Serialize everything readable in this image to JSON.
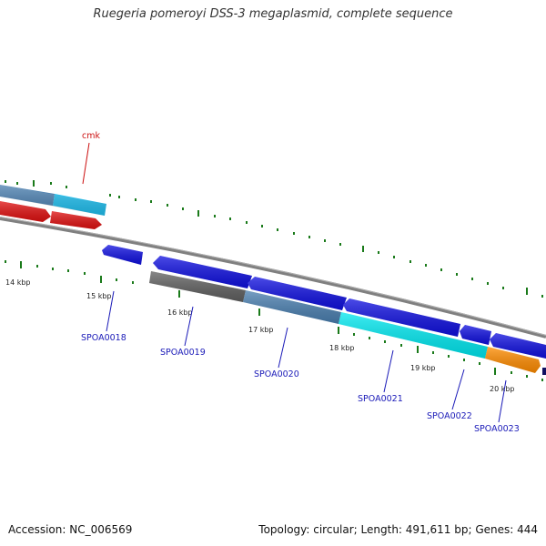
{
  "title": "Ruegeria pomeroyi DSS-3 megaplasmid, complete sequence",
  "footer": {
    "accession": "Accession: NC_006569",
    "summary": "Topology: circular; Length: 491,611 bp; Genes: 444"
  },
  "scale_labels": [
    "14 kbp",
    "15 kbp",
    "16 kbp",
    "17 kbp",
    "18 kbp",
    "19 kbp",
    "20 kbp"
  ],
  "gene_labels": {
    "cmk": "cmk",
    "spoa0018": "SPOA0018",
    "spoa0019": "SPOA0019",
    "spoa0020": "SPOA0020",
    "spoa0021": "SPOA0021",
    "spoa0022": "SPOA0022",
    "spoa0023": "SPOA0023"
  },
  "colors": {
    "backbone": "#808080",
    "tick": "#1a7a1a",
    "blue": "#1010e0",
    "red": "#e01010",
    "cyan": "#00e8f0",
    "steelblue": "#4a7fb0",
    "lightblue": "#20c0f0",
    "darkgray": "#606060",
    "orange": "#ff8c00",
    "label_blue": "#1a1ab8",
    "label_red": "#cc1111"
  }
}
